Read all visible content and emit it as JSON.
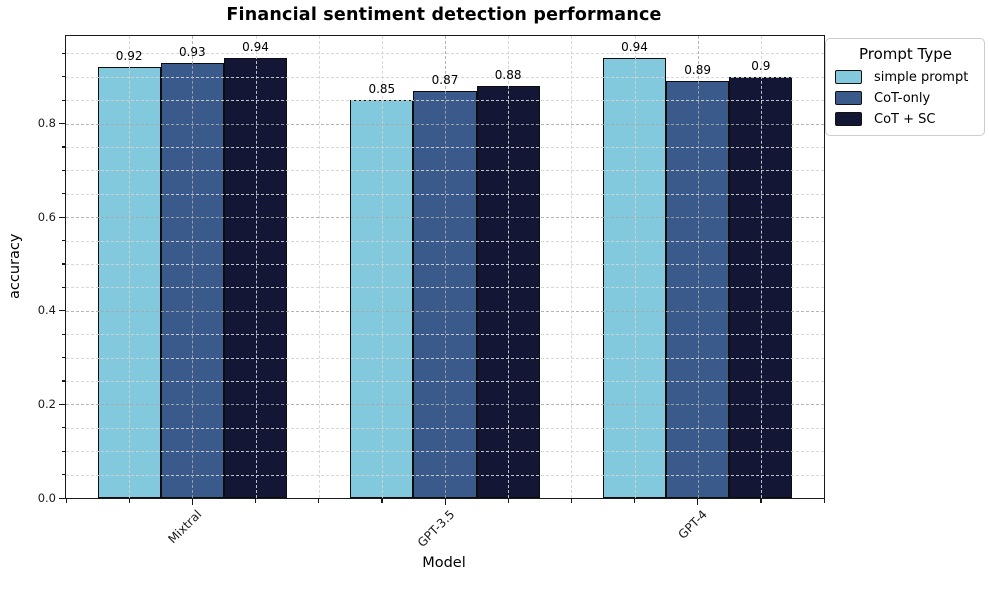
{
  "chart_data": {
    "type": "bar",
    "title": "Financial sentiment detection performance",
    "xlabel": "Model",
    "ylabel": "accuracy",
    "categories": [
      "Mixtral",
      "GPT-3.5",
      "GPT-4"
    ],
    "series": [
      {
        "name": "simple prompt",
        "color": "#82c9dd",
        "values": [
          0.92,
          0.85,
          0.94
        ],
        "labels": [
          "0.92",
          "0.85",
          "0.94"
        ]
      },
      {
        "name": "CoT-only",
        "color": "#3a5a8c",
        "values": [
          0.93,
          0.87,
          0.89
        ],
        "labels": [
          "0.93",
          "0.87",
          "0.89"
        ]
      },
      {
        "name": "CoT + SC",
        "color": "#131735",
        "values": [
          0.94,
          0.88,
          0.9
        ],
        "labels": [
          "0.94",
          "0.88",
          "0.9"
        ]
      }
    ],
    "legend": {
      "title": "Prompt Type",
      "position": "upper-right-outside"
    },
    "xlim": [
      -0.5,
      2.5
    ],
    "ylim": [
      0,
      0.987
    ],
    "yticks": [
      0.0,
      0.2,
      0.4,
      0.6,
      0.8
    ],
    "ytick_labels": [
      "0.0",
      "0.2",
      "0.4",
      "0.6",
      "0.8"
    ],
    "minor_tick_step_y": 0.05,
    "minor_tick_step_x": 0.25,
    "grid": {
      "which": "both",
      "linestyle": "dashed",
      "major_color": "#a9a9a9",
      "minor_color": "#d4d4d4",
      "above_bars": true
    },
    "bar_edge_color": "#0d0d0d"
  }
}
